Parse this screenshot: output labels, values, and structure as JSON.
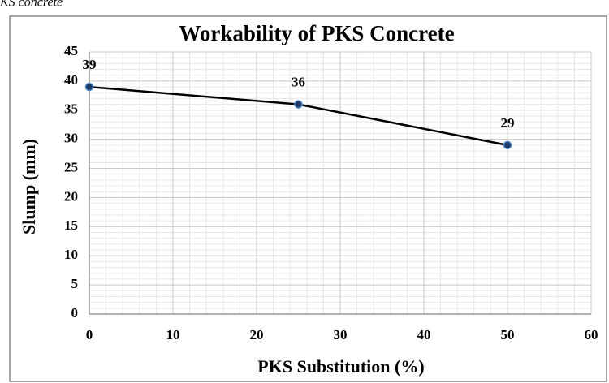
{
  "caption": "KS concrete",
  "chart_data": {
    "type": "line",
    "title": "Workability of PKS Concrete",
    "x_label": "PKS Substitution (%)",
    "y_label": "Slump (mm)",
    "x": [
      0,
      25,
      50
    ],
    "series": [
      {
        "name": "Slump",
        "color": "#000000",
        "marker_color": "#1f3864",
        "values": [
          39,
          36,
          29
        ]
      }
    ],
    "xlim": [
      0,
      60
    ],
    "xticks": [
      0,
      10,
      20,
      30,
      40,
      50,
      60
    ],
    "ylim": [
      0,
      45
    ],
    "yticks": [
      0,
      5,
      10,
      15,
      20,
      25,
      30,
      35,
      40,
      45
    ],
    "grid": true,
    "minor_grid": true,
    "data_labels": true
  }
}
